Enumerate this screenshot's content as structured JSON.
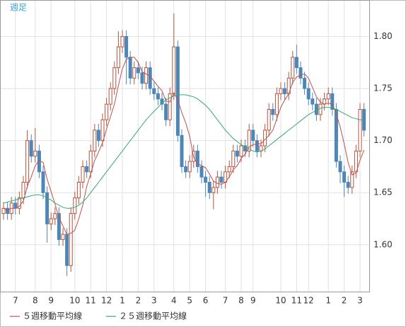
{
  "chart_data": {
    "type": "candlestick",
    "title": "週足",
    "categories": [
      null,
      null,
      null,
      "7",
      null,
      null,
      null,
      null,
      "8",
      null,
      null,
      null,
      "9",
      null,
      null,
      null,
      null,
      null,
      "10",
      null,
      null,
      null,
      "11",
      null,
      null,
      null,
      "12",
      null,
      null,
      null,
      "1",
      null,
      null,
      null,
      "2",
      null,
      null,
      null,
      "3",
      null,
      null,
      null,
      null,
      "4",
      null,
      null,
      null,
      "5",
      null,
      null,
      null,
      "6",
      null,
      null,
      null,
      null,
      "7",
      null,
      null,
      null,
      "8",
      null,
      null,
      "9",
      null,
      null,
      null,
      null,
      null,
      null,
      "10",
      null,
      null,
      null,
      "11",
      null,
      null,
      "12",
      null,
      null,
      null,
      null,
      "1",
      null,
      null,
      null,
      "2",
      null,
      null,
      null,
      "3",
      null
    ],
    "open": [
      1.63,
      1.635,
      1.63,
      1.64,
      1.635,
      1.645,
      1.66,
      1.7,
      1.685,
      1.69,
      1.67,
      1.65,
      1.62,
      1.625,
      1.63,
      1.605,
      1.61,
      1.58,
      1.63,
      1.645,
      1.66,
      1.675,
      1.67,
      1.69,
      1.71,
      1.7,
      1.72,
      1.735,
      1.75,
      1.77,
      1.79,
      1.8,
      1.78,
      1.76,
      1.77,
      1.765,
      1.755,
      1.77,
      1.75,
      1.745,
      1.74,
      1.735,
      1.72,
      1.745,
      1.79,
      1.705,
      1.675,
      1.67,
      1.68,
      1.69,
      1.675,
      1.665,
      1.66,
      1.65,
      1.655,
      1.665,
      1.66,
      1.67,
      1.675,
      1.69,
      1.685,
      1.695,
      1.69,
      1.71,
      1.7,
      1.69,
      1.695,
      1.71,
      1.73,
      1.725,
      1.745,
      1.75,
      1.745,
      1.76,
      1.78,
      1.77,
      1.76,
      1.75,
      1.74,
      1.735,
      1.725,
      1.735,
      1.74,
      1.745,
      1.73,
      1.68,
      1.67,
      1.66,
      1.655,
      1.67,
      1.69,
      1.73
    ],
    "high": [
      1.641,
      1.641,
      1.646,
      1.646,
      1.651,
      1.666,
      1.71,
      1.706,
      1.712,
      1.696,
      1.676,
      1.656,
      1.631,
      1.636,
      1.636,
      1.616,
      1.616,
      1.636,
      1.651,
      1.666,
      1.681,
      1.681,
      1.696,
      1.716,
      1.716,
      1.726,
      1.741,
      1.756,
      1.776,
      1.805,
      1.806,
      1.806,
      1.786,
      1.776,
      1.776,
      1.771,
      1.776,
      1.776,
      1.756,
      1.751,
      1.746,
      1.741,
      1.751,
      1.822,
      1.796,
      1.711,
      1.681,
      1.686,
      1.696,
      1.696,
      1.681,
      1.671,
      1.666,
      1.661,
      1.671,
      1.671,
      1.676,
      1.681,
      1.696,
      1.696,
      1.701,
      1.701,
      1.716,
      1.716,
      1.706,
      1.701,
      1.716,
      1.736,
      1.736,
      1.751,
      1.756,
      1.756,
      1.766,
      1.786,
      1.792,
      1.776,
      1.766,
      1.756,
      1.746,
      1.741,
      1.741,
      1.746,
      1.751,
      1.751,
      1.736,
      1.686,
      1.676,
      1.666,
      1.676,
      1.696,
      1.736,
      1.736
    ],
    "low": [
      1.624,
      1.624,
      1.624,
      1.629,
      1.629,
      1.639,
      1.654,
      1.679,
      1.679,
      1.664,
      1.644,
      1.602,
      1.614,
      1.619,
      1.599,
      1.599,
      1.57,
      1.574,
      1.624,
      1.639,
      1.654,
      1.664,
      1.664,
      1.684,
      1.694,
      1.694,
      1.714,
      1.729,
      1.744,
      1.764,
      1.784,
      1.754,
      1.754,
      1.754,
      1.759,
      1.749,
      1.749,
      1.744,
      1.739,
      1.734,
      1.729,
      1.714,
      1.714,
      1.739,
      1.699,
      1.669,
      1.664,
      1.664,
      1.674,
      1.669,
      1.659,
      1.646,
      1.644,
      1.634,
      1.649,
      1.654,
      1.654,
      1.664,
      1.669,
      1.679,
      1.679,
      1.684,
      1.684,
      1.694,
      1.684,
      1.684,
      1.689,
      1.704,
      1.719,
      1.719,
      1.739,
      1.739,
      1.739,
      1.754,
      1.764,
      1.754,
      1.744,
      1.734,
      1.729,
      1.719,
      1.719,
      1.729,
      1.734,
      1.724,
      1.674,
      1.659,
      1.646,
      1.649,
      1.649,
      1.664,
      1.684,
      1.704
    ],
    "close": [
      1.635,
      1.63,
      1.64,
      1.635,
      1.645,
      1.66,
      1.7,
      1.685,
      1.69,
      1.67,
      1.65,
      1.62,
      1.625,
      1.63,
      1.605,
      1.61,
      1.58,
      1.63,
      1.645,
      1.66,
      1.675,
      1.67,
      1.69,
      1.71,
      1.7,
      1.72,
      1.735,
      1.75,
      1.77,
      1.79,
      1.8,
      1.78,
      1.76,
      1.77,
      1.765,
      1.755,
      1.77,
      1.75,
      1.745,
      1.74,
      1.735,
      1.72,
      1.745,
      1.79,
      1.705,
      1.675,
      1.67,
      1.68,
      1.69,
      1.675,
      1.665,
      1.66,
      1.65,
      1.655,
      1.665,
      1.66,
      1.67,
      1.675,
      1.69,
      1.685,
      1.695,
      1.69,
      1.71,
      1.7,
      1.69,
      1.695,
      1.71,
      1.73,
      1.725,
      1.745,
      1.75,
      1.745,
      1.76,
      1.78,
      1.77,
      1.76,
      1.75,
      1.74,
      1.735,
      1.725,
      1.735,
      1.74,
      1.745,
      1.73,
      1.68,
      1.67,
      1.66,
      1.655,
      1.67,
      1.69,
      1.73,
      1.71
    ],
    "up_color": "#b4533f",
    "down_color": "#4f86b8",
    "series": [
      {
        "name": "５週移動平均線",
        "color": "#c0504d",
        "values": [
          1.635,
          1.633,
          1.635,
          1.635,
          1.637,
          1.642,
          1.656,
          1.665,
          1.676,
          1.681,
          1.679,
          1.663,
          1.651,
          1.639,
          1.626,
          1.618,
          1.61,
          1.611,
          1.614,
          1.625,
          1.638,
          1.656,
          1.668,
          1.681,
          1.689,
          1.698,
          1.711,
          1.723,
          1.735,
          1.753,
          1.769,
          1.778,
          1.78,
          1.78,
          1.775,
          1.766,
          1.764,
          1.762,
          1.757,
          1.752,
          1.748,
          1.738,
          1.737,
          1.746,
          1.739,
          1.727,
          1.717,
          1.704,
          1.684,
          1.678,
          1.676,
          1.674,
          1.668,
          1.661,
          1.659,
          1.658,
          1.66,
          1.665,
          1.672,
          1.676,
          1.683,
          1.687,
          1.694,
          1.696,
          1.697,
          1.697,
          1.701,
          1.705,
          1.71,
          1.721,
          1.732,
          1.739,
          1.745,
          1.756,
          1.761,
          1.763,
          1.764,
          1.76,
          1.751,
          1.742,
          1.737,
          1.735,
          1.736,
          1.735,
          1.726,
          1.713,
          1.697,
          1.679,
          1.667,
          1.669,
          1.681,
          1.691
        ]
      },
      {
        "name": "２５週移動平均線",
        "color": "#3aa676",
        "values": [
          1.64,
          1.641,
          1.642,
          1.643,
          1.644,
          1.645,
          1.646,
          1.647,
          1.648,
          1.648,
          1.647,
          1.645,
          1.643,
          1.64,
          1.638,
          1.636,
          1.635,
          1.635,
          1.636,
          1.638,
          1.641,
          1.645,
          1.65,
          1.655,
          1.66,
          1.665,
          1.67,
          1.675,
          1.68,
          1.685,
          1.69,
          1.695,
          1.7,
          1.705,
          1.71,
          1.715,
          1.72,
          1.724,
          1.728,
          1.732,
          1.736,
          1.739,
          1.741,
          1.743,
          1.744,
          1.744,
          1.744,
          1.743,
          1.742,
          1.74,
          1.737,
          1.734,
          1.73,
          1.725,
          1.72,
          1.715,
          1.71,
          1.706,
          1.702,
          1.699,
          1.696,
          1.694,
          1.692,
          1.69,
          1.689,
          1.69,
          1.692,
          1.695,
          1.698,
          1.701,
          1.704,
          1.707,
          1.71,
          1.713,
          1.716,
          1.719,
          1.722,
          1.725,
          1.727,
          1.729,
          1.731,
          1.732,
          1.732,
          1.731,
          1.73,
          1.728,
          1.726,
          1.724,
          1.722,
          1.721,
          1.72,
          1.72
        ]
      }
    ],
    "ylim": [
      1.555,
      1.835
    ],
    "yticks": [
      {
        "value": 1.6,
        "label": "1.60"
      },
      {
        "value": 1.65,
        "label": "1.65"
      },
      {
        "value": 1.7,
        "label": "1.70"
      },
      {
        "value": 1.75,
        "label": "1.75"
      },
      {
        "value": 1.8,
        "label": "1.80"
      }
    ],
    "grid": true
  }
}
